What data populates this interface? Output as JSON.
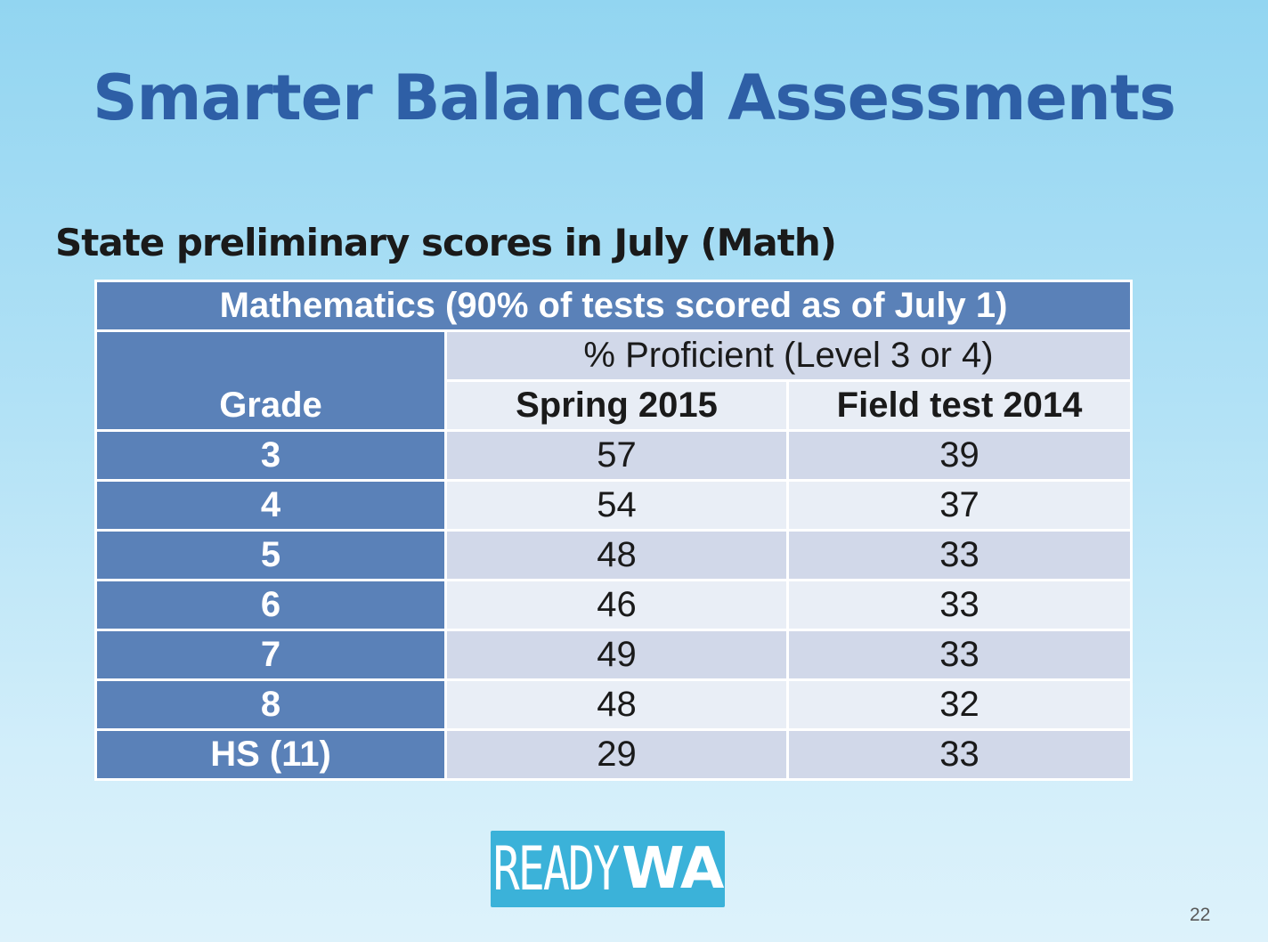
{
  "slide": {
    "title": "Smarter Balanced Assessments",
    "subtitle": "State preliminary scores in July (Math)",
    "page_number": "22"
  },
  "table": {
    "caption": "Mathematics (90% of tests scored as of July 1)",
    "grade_header": "Grade",
    "group_header": "% Proficient (Level 3 or 4)",
    "columns": [
      "Spring 2015",
      "Field test 2014"
    ],
    "rows": [
      {
        "grade": "3",
        "spring_2015": "57",
        "field_test_2014": "39"
      },
      {
        "grade": "4",
        "spring_2015": "54",
        "field_test_2014": "37"
      },
      {
        "grade": "5",
        "spring_2015": "48",
        "field_test_2014": "33"
      },
      {
        "grade": "6",
        "spring_2015": "46",
        "field_test_2014": "33"
      },
      {
        "grade": "7",
        "spring_2015": "49",
        "field_test_2014": "33"
      },
      {
        "grade": "8",
        "spring_2015": "48",
        "field_test_2014": "32"
      },
      {
        "grade": "HS (11)",
        "spring_2015": "29",
        "field_test_2014": "33"
      }
    ]
  },
  "logo": {
    "part1": "READY",
    "part2": "WA"
  },
  "colors": {
    "title": "#2e5fa6",
    "header_blue": "#5a81b8",
    "row_dark": "#d1d8e9",
    "row_light": "#e9eef6",
    "logo_bg": "#3bb2d9"
  }
}
